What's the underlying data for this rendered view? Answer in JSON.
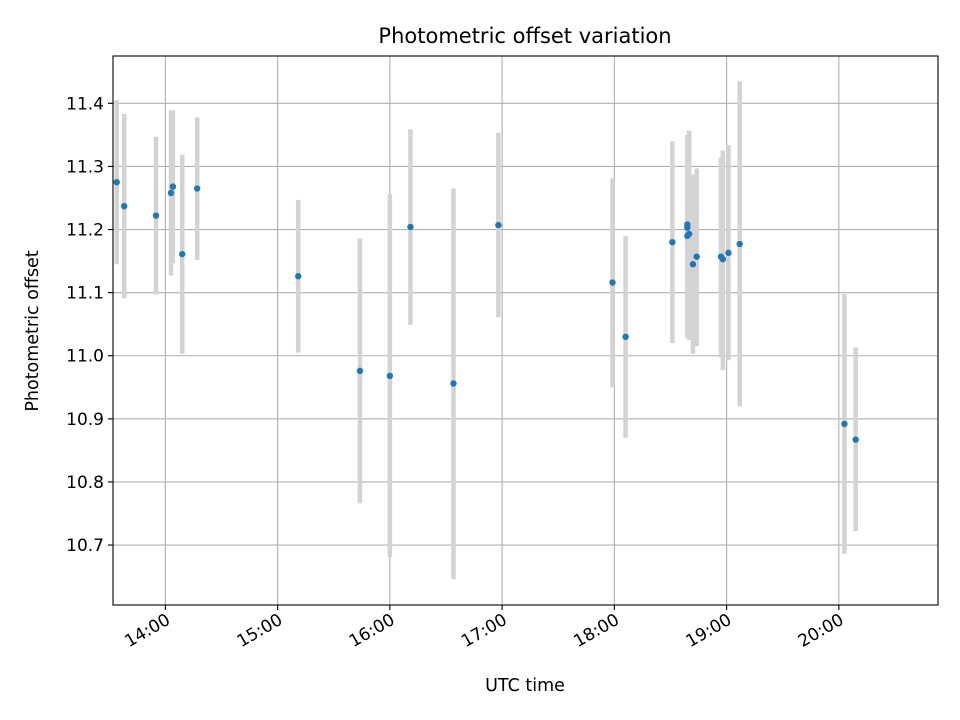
{
  "chart_data": {
    "type": "scatter",
    "title": "Photometric offset variation",
    "xlabel": "UTC time",
    "ylabel": "Photometric offset",
    "x_ticks": [
      "14:00",
      "15:00",
      "16:00",
      "17:00",
      "18:00",
      "19:00",
      "20:00"
    ],
    "y_ticks": [
      "10.7",
      "10.8",
      "10.9",
      "11.0",
      "11.1",
      "11.2",
      "11.3",
      "11.4"
    ],
    "xlim": [
      "13:32",
      "20:53"
    ],
    "ylim": [
      10.605,
      11.475
    ],
    "grid": true,
    "colors": {
      "point": "#1f77b4",
      "errorbar": "#d3d3d3",
      "grid": "#b0b0b0"
    },
    "points": [
      {
        "x": "13:34",
        "y": 11.275,
        "err_low": 11.145,
        "err_high": 11.405
      },
      {
        "x": "13:38",
        "y": 11.237,
        "err_low": 11.091,
        "err_high": 11.383
      },
      {
        "x": "13:55",
        "y": 11.222,
        "err_low": 11.097,
        "err_high": 11.347
      },
      {
        "x": "14:03",
        "y": 11.258,
        "err_low": 11.127,
        "err_high": 11.389
      },
      {
        "x": "14:04",
        "y": 11.268,
        "err_low": 11.147,
        "err_high": 11.389
      },
      {
        "x": "14:09",
        "y": 11.161,
        "err_low": 11.003,
        "err_high": 11.319
      },
      {
        "x": "14:17",
        "y": 11.265,
        "err_low": 11.152,
        "err_high": 11.378
      },
      {
        "x": "15:11",
        "y": 11.126,
        "err_low": 11.005,
        "err_high": 11.247
      },
      {
        "x": "15:44",
        "y": 10.976,
        "err_low": 10.766,
        "err_high": 11.186
      },
      {
        "x": "16:00",
        "y": 10.968,
        "err_low": 10.681,
        "err_high": 11.256
      },
      {
        "x": "16:11",
        "y": 11.204,
        "err_low": 11.049,
        "err_high": 11.359
      },
      {
        "x": "16:34",
        "y": 10.956,
        "err_low": 10.646,
        "err_high": 11.265
      },
      {
        "x": "16:58",
        "y": 11.207,
        "err_low": 11.061,
        "err_high": 11.353
      },
      {
        "x": "17:59",
        "y": 11.116,
        "err_low": 10.95,
        "err_high": 11.281
      },
      {
        "x": "18:06",
        "y": 11.03,
        "err_low": 10.87,
        "err_high": 11.19
      },
      {
        "x": "18:31",
        "y": 11.18,
        "err_low": 11.02,
        "err_high": 11.34
      },
      {
        "x": "18:39",
        "y": 11.208,
        "err_low": 11.06,
        "err_high": 11.343
      },
      {
        "x": "18:39",
        "y": 11.203,
        "err_low": 11.04,
        "err_high": 11.345
      },
      {
        "x": "18:39",
        "y": 11.19,
        "err_low": 11.028,
        "err_high": 11.35
      },
      {
        "x": "18:40",
        "y": 11.193,
        "err_low": 11.025,
        "err_high": 11.357
      },
      {
        "x": "18:42",
        "y": 11.145,
        "err_low": 11.003,
        "err_high": 11.287
      },
      {
        "x": "18:44",
        "y": 11.157,
        "err_low": 11.015,
        "err_high": 11.297
      },
      {
        "x": "18:57",
        "y": 11.157,
        "err_low": 10.997,
        "err_high": 11.314
      },
      {
        "x": "18:58",
        "y": 11.153,
        "err_low": 10.977,
        "err_high": 11.325
      },
      {
        "x": "19:01",
        "y": 11.163,
        "err_low": 10.993,
        "err_high": 11.334
      },
      {
        "x": "19:07",
        "y": 11.177,
        "err_low": 10.92,
        "err_high": 11.435
      },
      {
        "x": "20:03",
        "y": 10.892,
        "err_low": 10.686,
        "err_high": 11.098
      },
      {
        "x": "20:09",
        "y": 10.867,
        "err_low": 10.722,
        "err_high": 11.013
      }
    ]
  }
}
